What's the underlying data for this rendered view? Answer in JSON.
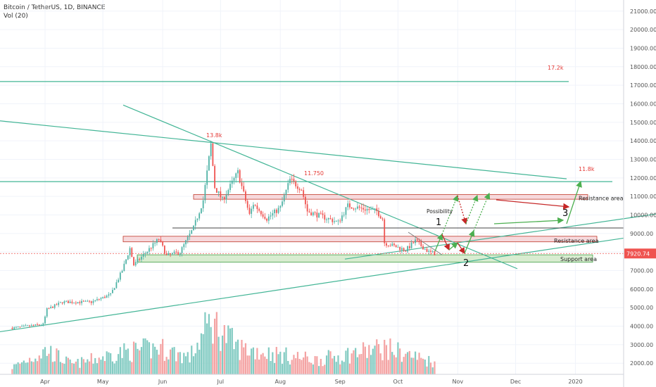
{
  "header": {
    "symbol_line": "Bitcoin / TetherUS, 1D, BINANCE",
    "volume_line": "Vol (20)"
  },
  "colors": {
    "up": "#4fb3a6",
    "down": "#ef5350",
    "up_volume": "#82cbc2",
    "down_volume": "#f4a3a3",
    "trendline": "#43b596",
    "resistance_fill": "#f6d9dc",
    "resistance_stroke": "#c0392b",
    "support_fill": "#d8ecd0",
    "support_stroke": "#43a047",
    "price_label_bg": "#ef5350",
    "annotation_red": "#e53935",
    "arrow_red": "#c62828",
    "arrow_green": "#4caf50"
  },
  "price_label": "7920.74",
  "annotations": {
    "peak": "13.8k",
    "level_11750": "11.750",
    "target_17": "17.2k",
    "target_11": "11.8k",
    "resistance_upper": "Resistance area",
    "resistance_lower": "Resistance area",
    "support": "Support area",
    "possibility": "Possibility",
    "n1": "1",
    "n2": "2",
    "n3": "3"
  },
  "chart_data": {
    "type": "candlestick",
    "x_ticks": [
      "Apr",
      "May",
      "Jun",
      "Jul",
      "Aug",
      "Sep",
      "Oct",
      "Nov",
      "Dec",
      "2020"
    ],
    "y_ticks": [
      "21000.00",
      "20000.00",
      "19000.00",
      "18000.00",
      "17000.00",
      "16000.00",
      "15000.00",
      "14000.00",
      "13000.00",
      "12000.00",
      "11000.00",
      "10000.00",
      "9000.00",
      "8000.00",
      "7000.00",
      "6000.00",
      "5000.00",
      "4000.00",
      "3000.00",
      "2000.00"
    ],
    "ylim": [
      1400,
      21600
    ],
    "price_anchors": [
      [
        "2019-03-15",
        3900
      ],
      [
        "2019-03-31",
        4100
      ],
      [
        "2019-04-02",
        4900
      ],
      [
        "2019-04-10",
        5300
      ],
      [
        "2019-04-25",
        5300
      ],
      [
        "2019-05-05",
        5700
      ],
      [
        "2019-05-11",
        7000
      ],
      [
        "2019-05-15",
        8200
      ],
      [
        "2019-05-17",
        7300
      ],
      [
        "2019-05-30",
        8700
      ],
      [
        "2019-06-03",
        7800
      ],
      [
        "2019-06-10",
        8000
      ],
      [
        "2019-06-17",
        9300
      ],
      [
        "2019-06-22",
        10800
      ],
      [
        "2019-06-26",
        13800
      ],
      [
        "2019-06-28",
        11500
      ],
      [
        "2019-07-02",
        10800
      ],
      [
        "2019-07-10",
        12300
      ],
      [
        "2019-07-16",
        10000
      ],
      [
        "2019-07-18",
        10600
      ],
      [
        "2019-07-25",
        9800
      ],
      [
        "2019-08-01",
        10400
      ],
      [
        "2019-08-06",
        11900
      ],
      [
        "2019-08-12",
        11400
      ],
      [
        "2019-08-15",
        10200
      ],
      [
        "2019-08-31",
        9600
      ],
      [
        "2019-09-05",
        10500
      ],
      [
        "2019-09-20",
        10200
      ],
      [
        "2019-09-23",
        9800
      ],
      [
        "2019-09-24",
        8500
      ],
      [
        "2019-10-05",
        8100
      ],
      [
        "2019-10-10",
        8600
      ],
      [
        "2019-10-17",
        8000
      ],
      [
        "2019-10-20",
        7920
      ]
    ],
    "volume_units": "thousand BTC",
    "volume_anchors": [
      [
        "2019-03-15",
        15
      ],
      [
        "2019-04-02",
        50
      ],
      [
        "2019-04-15",
        20
      ],
      [
        "2019-05-10",
        45
      ],
      [
        "2019-05-30",
        55
      ],
      [
        "2019-06-15",
        35
      ],
      [
        "2019-06-26",
        110
      ],
      [
        "2019-07-10",
        55
      ],
      [
        "2019-08-01",
        40
      ],
      [
        "2019-08-20",
        30
      ],
      [
        "2019-09-24",
        55
      ],
      [
        "2019-10-20",
        25
      ]
    ],
    "levels": {
      "current": 7920.74,
      "target_high": 17200,
      "target_mid": 11800,
      "mid_line": 9300
    },
    "zones": [
      {
        "label": "Resistance area",
        "from": 10850,
        "to": 11100
      },
      {
        "label": "Resistance area",
        "from": 8550,
        "to": 8850
      },
      {
        "label": "Support area",
        "from": 7450,
        "to": 7850
      }
    ]
  }
}
